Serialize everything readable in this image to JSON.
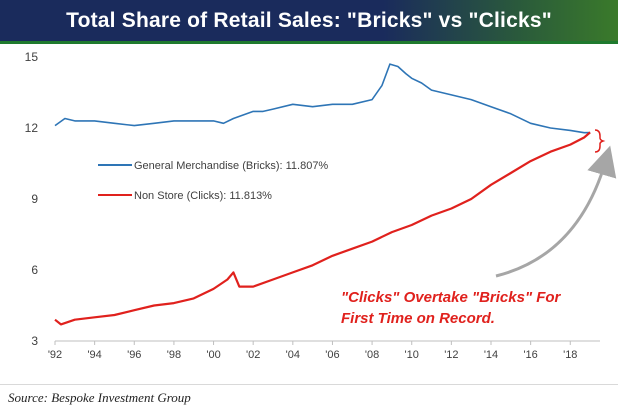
{
  "header": {
    "title": "Total Share of Retail Sales: \"Bricks\" vs \"Clicks\""
  },
  "footer": {
    "source": "Source: Bespoke Investment Group"
  },
  "chart_data": {
    "type": "line",
    "title": "Total Share of Retail Sales: \"Bricks\" vs \"Clicks\"",
    "xlabel": "",
    "ylabel": "",
    "xlim": [
      1992,
      2019.5
    ],
    "ylim": [
      3,
      15
    ],
    "x_ticks": [
      1992,
      1994,
      1996,
      1998,
      2000,
      2002,
      2004,
      2006,
      2008,
      2010,
      2012,
      2014,
      2016,
      2018
    ],
    "x_tick_labels": [
      "'92",
      "'94",
      "'96",
      "'98",
      "'00",
      "'02",
      "'04",
      "'06",
      "'08",
      "'10",
      "'12",
      "'14",
      "'16",
      "'18"
    ],
    "y_ticks": [
      3,
      6,
      9,
      12,
      15
    ],
    "y_tick_labels": [
      "3",
      "6",
      "9",
      "12",
      "15"
    ],
    "grid": false,
    "legend_position": "left-middle",
    "series": [
      {
        "name": "General Merchandise (Bricks): 11.807%",
        "color": "#2e75b6",
        "x": [
          1992,
          1992.5,
          1993,
          1994,
          1995,
          1996,
          1997,
          1998,
          1999,
          2000,
          2000.5,
          2001,
          2002,
          2002.5,
          2003,
          2004,
          2005,
          2006,
          2007,
          2008,
          2008.5,
          2008.9,
          2009.3,
          2009.7,
          2010,
          2010.5,
          2011,
          2012,
          2013,
          2014,
          2015,
          2016,
          2017,
          2018,
          2018.7,
          2019
        ],
        "y": [
          12.1,
          12.4,
          12.3,
          12.3,
          12.2,
          12.1,
          12.2,
          12.3,
          12.3,
          12.3,
          12.2,
          12.4,
          12.7,
          12.7,
          12.8,
          13.0,
          12.9,
          13.0,
          13.0,
          13.2,
          13.8,
          14.7,
          14.6,
          14.3,
          14.1,
          13.9,
          13.6,
          13.4,
          13.2,
          12.9,
          12.6,
          12.2,
          12.0,
          11.9,
          11.8,
          11.807
        ]
      },
      {
        "name": "Non Store (Clicks): 11.813%",
        "color": "#e0211d",
        "x": [
          1992,
          1992.3,
          1993,
          1994,
          1995,
          1996,
          1997,
          1998,
          1999,
          2000,
          2000.7,
          2001,
          2001.3,
          2002,
          2003,
          2004,
          2005,
          2006,
          2007,
          2008,
          2009,
          2010,
          2011,
          2012,
          2013,
          2014,
          2015,
          2016,
          2017,
          2018,
          2018.7,
          2019
        ],
        "y": [
          3.9,
          3.7,
          3.9,
          4.0,
          4.1,
          4.3,
          4.5,
          4.6,
          4.8,
          5.2,
          5.6,
          5.9,
          5.3,
          5.3,
          5.6,
          5.9,
          6.2,
          6.6,
          6.9,
          7.2,
          7.6,
          7.9,
          8.3,
          8.6,
          9.0,
          9.6,
          10.1,
          10.6,
          11.0,
          11.3,
          11.6,
          11.813
        ]
      }
    ],
    "annotations": [
      {
        "text": "\"Clicks\" Overtake \"Bricks\" For",
        "color": "#e0211d"
      },
      {
        "text": "First Time on Record.",
        "color": "#e0211d"
      }
    ]
  }
}
